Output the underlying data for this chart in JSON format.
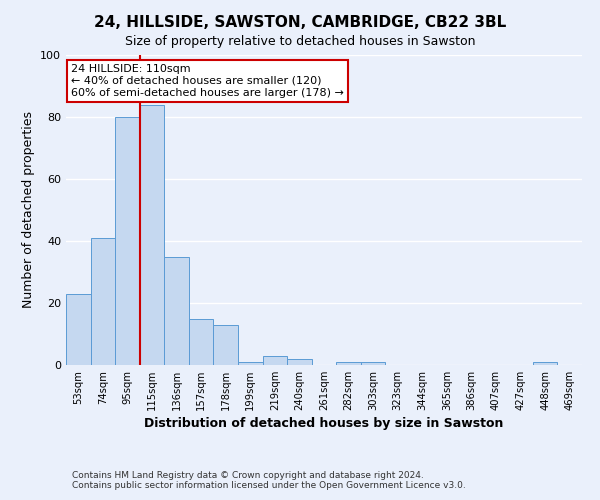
{
  "title": "24, HILLSIDE, SAWSTON, CAMBRIDGE, CB22 3BL",
  "subtitle": "Size of property relative to detached houses in Sawston",
  "xlabel": "Distribution of detached houses by size in Sawston",
  "ylabel": "Number of detached properties",
  "xlabels": [
    "53sqm",
    "74sqm",
    "95sqm",
    "115sqm",
    "136sqm",
    "157sqm",
    "178sqm",
    "199sqm",
    "219sqm",
    "240sqm",
    "261sqm",
    "282sqm",
    "303sqm",
    "323sqm",
    "344sqm",
    "365sqm",
    "386sqm",
    "407sqm",
    "427sqm",
    "448sqm",
    "469sqm"
  ],
  "bar_heights": [
    23,
    41,
    80,
    84,
    35,
    15,
    13,
    1,
    3,
    2,
    0,
    1,
    1,
    0,
    0,
    0,
    0,
    0,
    0,
    1,
    0
  ],
  "bar_color": "#c5d8f0",
  "bar_edge_color": "#5b9bd5",
  "background_color": "#eaf0fb",
  "grid_color": "#ffffff",
  "ylim": [
    0,
    100
  ],
  "yticks": [
    0,
    20,
    40,
    60,
    80,
    100
  ],
  "property_line_color": "#cc0000",
  "annotation_title": "24 HILLSIDE: 110sqm",
  "annotation_line1": "← 40% of detached houses are smaller (120)",
  "annotation_line2": "60% of semi-detached houses are larger (178) →",
  "annotation_box_color": "#ffffff",
  "annotation_box_edge_color": "#cc0000",
  "footer_line1": "Contains HM Land Registry data © Crown copyright and database right 2024.",
  "footer_line2": "Contains public sector information licensed under the Open Government Licence v3.0."
}
